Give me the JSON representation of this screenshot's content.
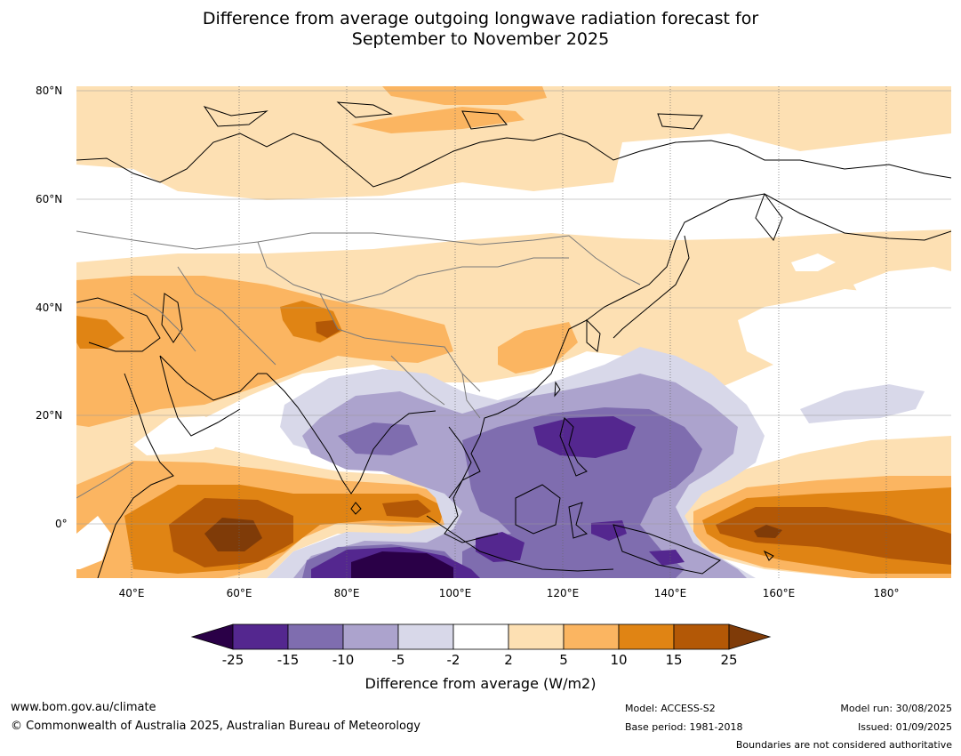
{
  "title_line1": "Difference from average outgoing longwave radiation forecast for",
  "title_line2": "September to November 2025",
  "lat_labels": [
    "80°N",
    "60°N",
    "40°N",
    "20°N",
    "0°"
  ],
  "lon_labels": [
    "40°E",
    "60°E",
    "80°E",
    "100°E",
    "120°E",
    "140°E",
    "160°E",
    "180°"
  ],
  "colorbar": {
    "title": "Difference from average (W/m2)",
    "ticks": [
      "-25",
      "-15",
      "-10",
      "-5",
      "-2",
      "2",
      "5",
      "10",
      "15",
      "25"
    ],
    "colors": {
      "lt_-25": "#2a0047",
      "-25_-15": "#54278f",
      "-15_-10": "#7f6daf",
      "-10_-5": "#aca3cd",
      "-5_-2": "#d8d8e9",
      "-2_2": "#ffffff",
      "2_5": "#fde0b3",
      "5_10": "#fbb561",
      "10_15": "#e08414",
      "15_25": "#b35806",
      "gt_25": "#7f3b08"
    }
  },
  "footer": {
    "url": "www.bom.gov.au/climate",
    "copyright": "© Commonwealth of Australia 2025, Australian Bureau of Meteorology",
    "model": "Model: ACCESS-S2",
    "base_period": "Base period: 1981-2018",
    "model_run": "Model run: 30/08/2025",
    "issued": "Issued: 01/09/2025",
    "disclaimer": "Boundaries are not considered authoritative"
  }
}
